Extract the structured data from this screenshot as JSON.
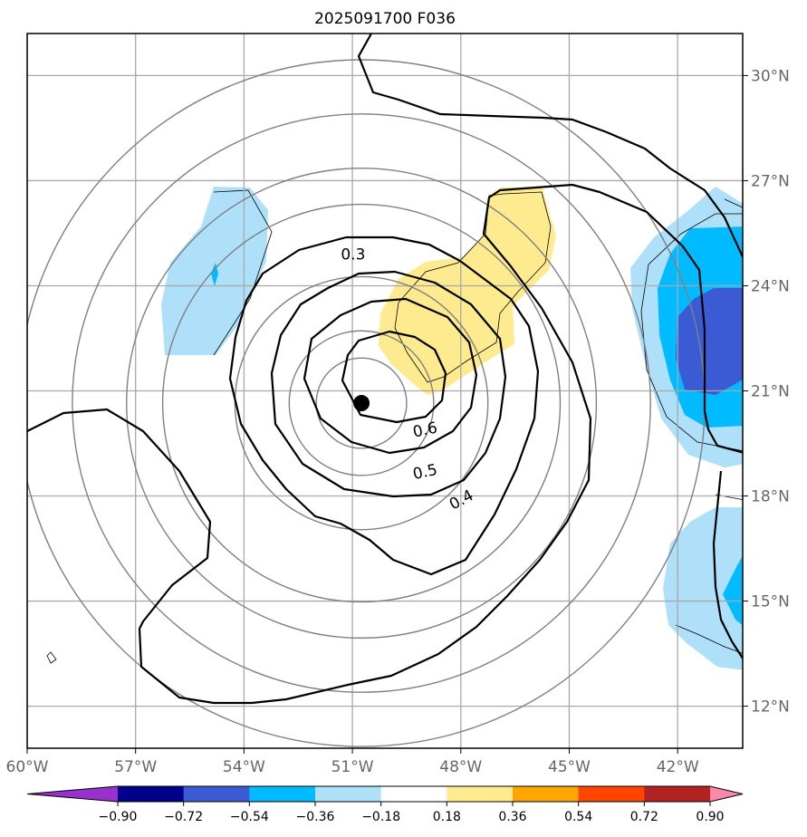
{
  "chart_data": {
    "type": "contour",
    "title": "2025091700 F036",
    "x_axis": {
      "ticks": [
        -60,
        -57,
        -54,
        -51,
        -48,
        -45,
        -42
      ],
      "tick_labels": [
        "60°W",
        "57°W",
        "54°W",
        "51°W",
        "48°W",
        "45°W",
        "42°W"
      ],
      "range": [
        -60,
        -40.2
      ]
    },
    "y_axis": {
      "ticks": [
        12,
        15,
        18,
        21,
        24,
        27,
        30
      ],
      "tick_labels": [
        "12°N",
        "15°N",
        "18°N",
        "21°N",
        "24°N",
        "27°N",
        "30°N"
      ],
      "range": [
        10.8,
        31.2
      ],
      "side": "right"
    },
    "grid": true,
    "center_marker": {
      "lon": -50.75,
      "lat": 20.65
    },
    "range_rings_deg": [
      1.25,
      2.0,
      3.5,
      5.5,
      6.5,
      8.0,
      9.5
    ],
    "contour_levels": [
      0.3,
      0.4,
      0.5,
      0.6
    ],
    "contour_labels": [
      {
        "text": "0.3",
        "lon": -50.98,
        "lat": 24.9
      },
      {
        "text": "0.6",
        "lon": -48.99,
        "lat": 19.9
      },
      {
        "text": "0.5",
        "lon": -48.99,
        "lat": 18.7
      },
      {
        "text": "0.4",
        "lon": -47.99,
        "lat": 17.9
      }
    ],
    "shaded_regions": [
      {
        "level": "0.18 to 0.36",
        "color": "#ffeb8f"
      },
      {
        "level": "-0.36 to -0.18",
        "color": "#aee0fa"
      },
      {
        "level": "-0.54 to -0.36",
        "color": "#00bbff"
      },
      {
        "level": "-0.72 to -0.54",
        "color": "#3b5bd5"
      }
    ],
    "colorbar": {
      "boundaries": [
        "−0.90",
        "−0.72",
        "−0.54",
        "−0.36",
        "−0.18",
        "0.18",
        "0.36",
        "0.54",
        "0.72",
        "0.90"
      ],
      "colors": [
        "#9932cc",
        "#00008b",
        "#3b5bd5",
        "#00bbff",
        "#aee0fa",
        "#ffffff",
        "#ffeb8f",
        "#ffa500",
        "#ff4500",
        "#b22222",
        "#ff88aa"
      ],
      "extend": "both"
    }
  }
}
